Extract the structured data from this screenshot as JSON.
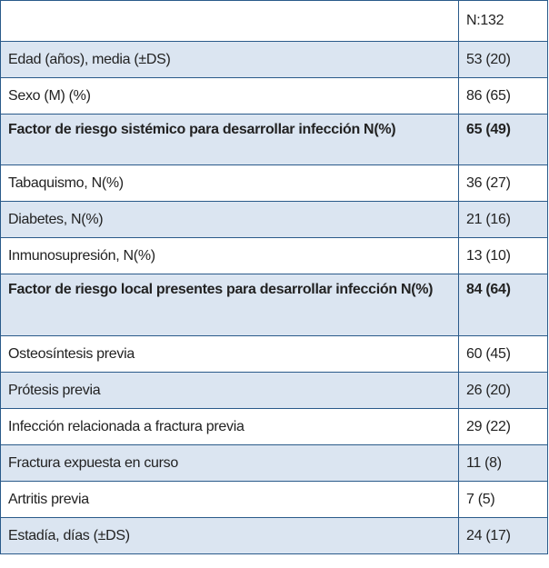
{
  "table": {
    "header": "N:132",
    "rows": [
      [
        "Edad (años), media (±DS)",
        "53 (20)"
      ],
      [
        "Sexo (M) (%)",
        "86 (65)"
      ],
      [
        "Factor de riesgo sistémico para desarrollar infección N(%)",
        "65 (49)"
      ],
      [
        "Tabaquismo, N(%)",
        "36 (27)"
      ],
      [
        "Diabetes, N(%)",
        "21 (16)"
      ],
      [
        "Inmunosupresión, N(%)",
        "13 (10)"
      ],
      [
        "Factor de riesgo local presentes para desarrollar infección N(%)",
        "84 (64)"
      ],
      [
        "Osteosíntesis previa",
        "60 (45)"
      ],
      [
        "Prótesis previa",
        "26 (20)"
      ],
      [
        "Infección relacionada a fractura previa",
        "29 (22)"
      ],
      [
        "Fractura expuesta en curso",
        "11 (8)"
      ],
      [
        "Artritis previa",
        "7 (5)"
      ],
      [
        "Estadía, días (±DS)",
        "24 (17)"
      ]
    ]
  }
}
